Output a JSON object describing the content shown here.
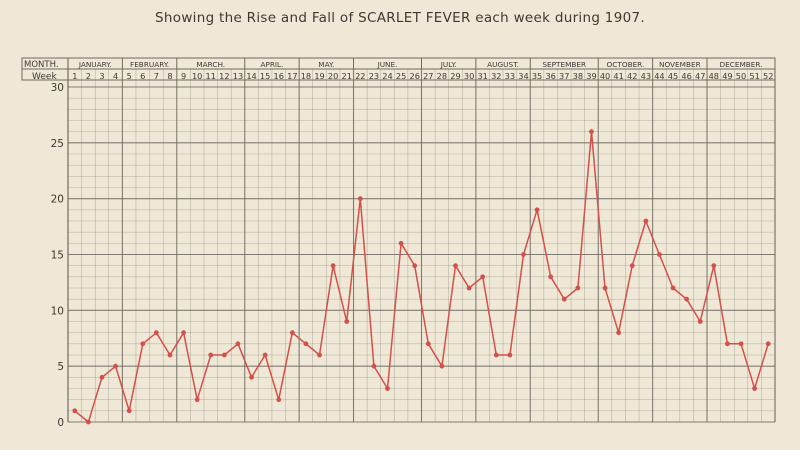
{
  "title": "Showing the Rise and Fall of SCARLET FEVER each week during 1907.",
  "header": {
    "month_label": "MONTH.",
    "week_label": "Week"
  },
  "colors": {
    "line": "#d4504a",
    "grid": "#6e6a62",
    "text": "#3d3a34",
    "paper": "#efe8d6"
  },
  "chart_data": {
    "type": "line",
    "title": "Showing the Rise and Fall of SCARLET FEVER each week during 1907.",
    "xlabel": "Week",
    "ylabel": "",
    "ylim": [
      0,
      30
    ],
    "yticks": [
      0,
      5,
      10,
      15,
      20,
      25,
      30
    ],
    "grid": true,
    "months": [
      {
        "label": "JANUARY.",
        "weeks": [
          1,
          4
        ]
      },
      {
        "label": "FEBRUARY.",
        "weeks": [
          5,
          8
        ]
      },
      {
        "label": "MARCH.",
        "weeks": [
          9,
          13
        ]
      },
      {
        "label": "APRIL.",
        "weeks": [
          14,
          17
        ]
      },
      {
        "label": "MAY.",
        "weeks": [
          18,
          21
        ]
      },
      {
        "label": "JUNE.",
        "weeks": [
          22,
          26
        ]
      },
      {
        "label": "JULY.",
        "weeks": [
          27,
          30
        ]
      },
      {
        "label": "AUGUST.",
        "weeks": [
          31,
          34
        ]
      },
      {
        "label": "SEPTEMBER",
        "weeks": [
          35,
          39
        ]
      },
      {
        "label": "OCTOBER.",
        "weeks": [
          40,
          43
        ]
      },
      {
        "label": "NOVEMBER",
        "weeks": [
          44,
          47
        ]
      },
      {
        "label": "DECEMBER.",
        "weeks": [
          48,
          52
        ]
      }
    ],
    "x": [
      1,
      2,
      3,
      4,
      5,
      6,
      7,
      8,
      9,
      10,
      11,
      12,
      13,
      14,
      15,
      16,
      17,
      18,
      19,
      20,
      21,
      22,
      23,
      24,
      25,
      26,
      27,
      28,
      29,
      30,
      31,
      32,
      33,
      34,
      35,
      36,
      37,
      38,
      39,
      40,
      41,
      42,
      43,
      44,
      45,
      46,
      47,
      48,
      49,
      50,
      51,
      52
    ],
    "series": [
      {
        "values": [
          1,
          0,
          4,
          5,
          1,
          7,
          8,
          6,
          8,
          2,
          6,
          6,
          7,
          4,
          6,
          2,
          8,
          7,
          6,
          14,
          9,
          20,
          5,
          3,
          16,
          14,
          7,
          5,
          14,
          12,
          13,
          6,
          6,
          15,
          19,
          13,
          11,
          12,
          26,
          12,
          8,
          14,
          18,
          15,
          12,
          11,
          9,
          14,
          7,
          7,
          3,
          7
        ]
      }
    ]
  }
}
